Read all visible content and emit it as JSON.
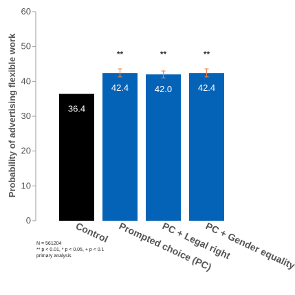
{
  "chart_data": {
    "type": "bar",
    "title": "",
    "xlabel": "",
    "ylabel": "Probability of advertising flexible work",
    "ylim": [
      0,
      60
    ],
    "yticks": [
      0,
      10,
      20,
      30,
      40,
      50,
      60
    ],
    "categories": [
      "Control",
      "Prompted choice (PC)",
      "PC + Legal right",
      "PC + Gender equality"
    ],
    "values": [
      36.4,
      42.4,
      42.0,
      42.4
    ],
    "value_labels": [
      "36.4",
      "42.4",
      "42.0",
      "42.4"
    ],
    "error_bars": [
      null,
      [
        41.3,
        43.6
      ],
      [
        41.0,
        43.0
      ],
      [
        41.3,
        43.6
      ]
    ],
    "significance": [
      "",
      "**",
      "**",
      "**"
    ],
    "bar_colors": [
      "#000000",
      "#0563b7",
      "#0563b7",
      "#0563b7"
    ],
    "error_bar_color": "#e8804a",
    "grid": false,
    "legend": "none"
  },
  "notes": [
    "N = 561204",
    "** p < 0.01, * p < 0.05, + p < 0.1",
    "primary analysis"
  ]
}
